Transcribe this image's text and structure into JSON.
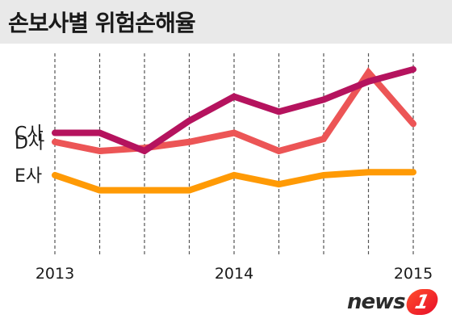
{
  "header": {
    "title": "손보사별 위험손해율"
  },
  "logo": {
    "text": "news",
    "badge": "1"
  },
  "colors": {
    "C": "#b5135e",
    "D": "#ec5556",
    "E": "#ff9a05",
    "grid": "#555555",
    "header_bg": "#e9e9e9"
  },
  "chart_data": {
    "type": "line",
    "x": [
      "2013-Q1",
      "2013-Q2",
      "2013-Q3",
      "2013-Q4",
      "2014-Q1",
      "2014-Q2",
      "2014-Q3",
      "2014-Q4",
      "2015-Q1"
    ],
    "x_tick_labels": [
      {
        "index": 0,
        "label": "2013"
      },
      {
        "index": 4,
        "label": "2014"
      },
      {
        "index": 8,
        "label": "2015"
      }
    ],
    "series": [
      {
        "name": "C사",
        "color": "#b5135e",
        "values": [
          86,
          86,
          80,
          90,
          98,
          93,
          97,
          103,
          107
        ]
      },
      {
        "name": "D사",
        "color": "#ec5556",
        "values": [
          83,
          80,
          81,
          83,
          86,
          80,
          84,
          106,
          89
        ]
      },
      {
        "name": "E사",
        "color": "#ff9a05",
        "values": [
          72,
          67,
          67,
          67,
          72,
          69,
          72,
          73,
          73
        ]
      }
    ],
    "ylim": [
      45,
      115
    ],
    "grid": "vertical-dashed",
    "legend": "left"
  }
}
